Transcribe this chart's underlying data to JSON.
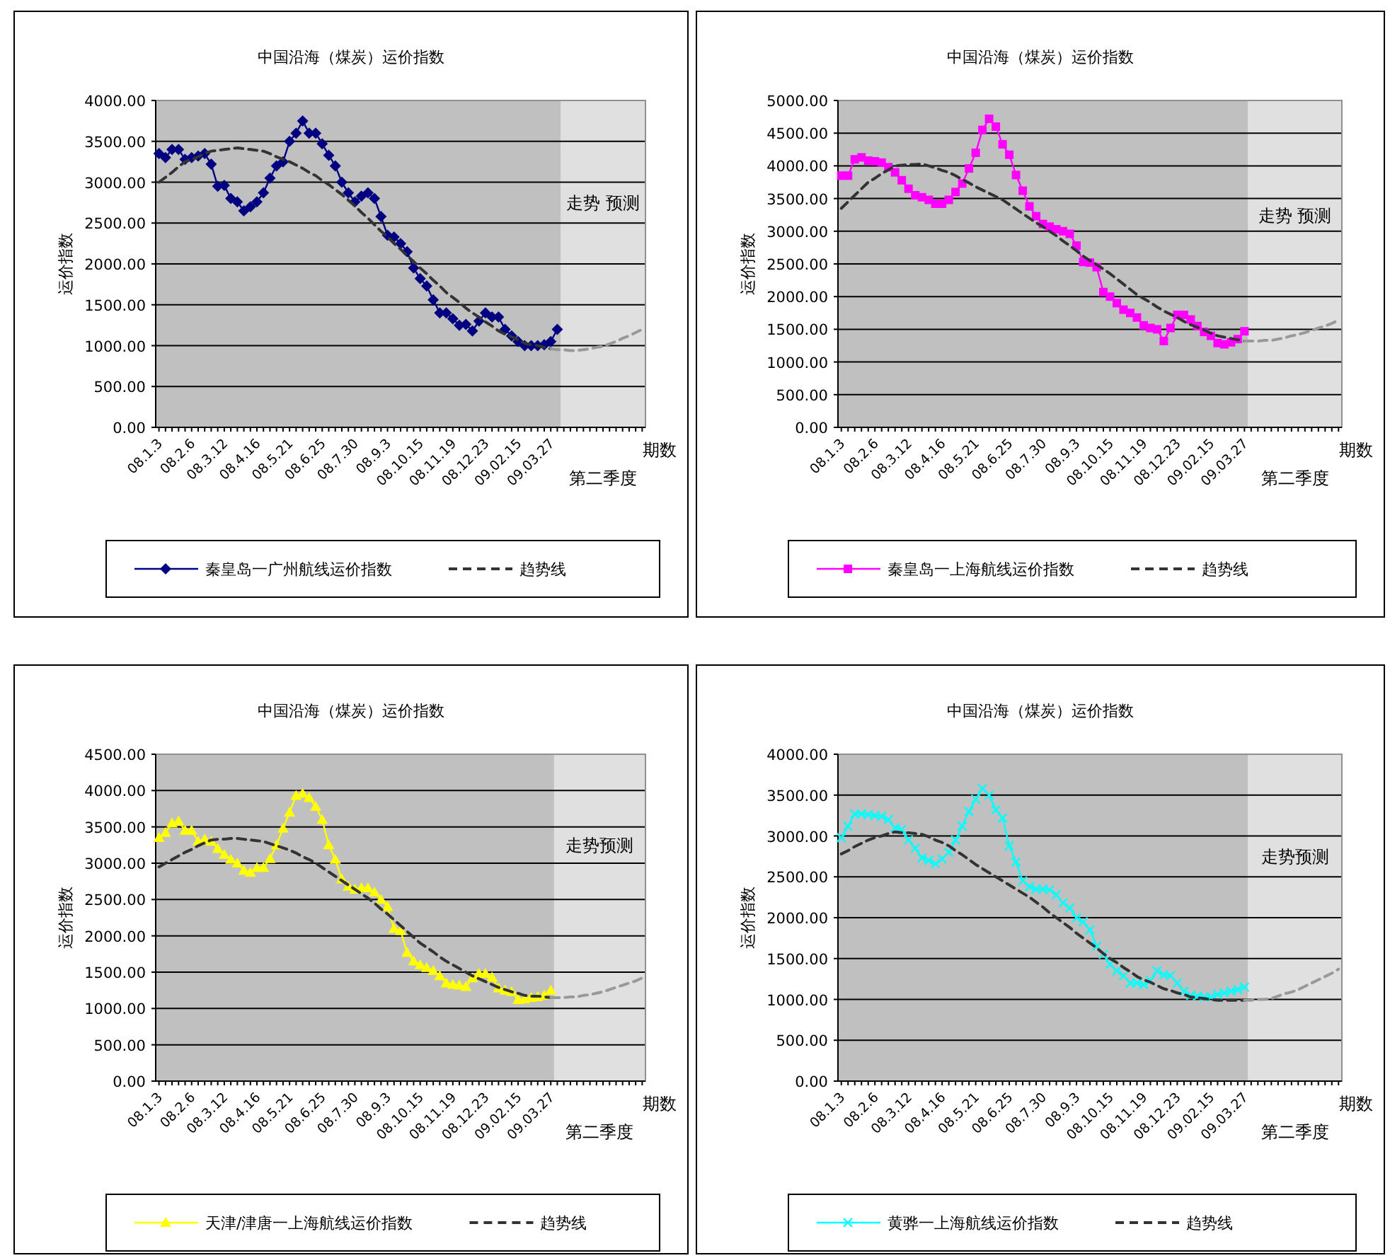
{
  "chart_data": [
    {
      "type": "line",
      "title": "中国沿海（煤炭）运价指数",
      "ylabel": "运价指数",
      "xlabel": "期数",
      "annotations": [
        "走势 预测",
        "第二季度"
      ],
      "ylim": [
        0,
        4000
      ],
      "yticks": [
        {
          "value": 0,
          "label": "0.00"
        },
        {
          "value": 500,
          "label": "500.00"
        },
        {
          "value": 1000,
          "label": "1000.00"
        },
        {
          "value": 1500,
          "label": "1500.00"
        },
        {
          "value": 2000,
          "label": "2000.00"
        },
        {
          "value": 2500,
          "label": "2500.00"
        },
        {
          "value": 3000,
          "label": "3000.00"
        },
        {
          "value": 3500,
          "label": "3500.00"
        },
        {
          "value": 4000,
          "label": "4000.00"
        }
      ],
      "categories": [
        "08.1.3",
        null,
        null,
        null,
        null,
        "08.2.6",
        null,
        null,
        null,
        null,
        "08.3.12",
        null,
        null,
        null,
        null,
        "08.4.16",
        null,
        null,
        null,
        null,
        "08.5.21",
        null,
        null,
        null,
        null,
        "08.6.25",
        null,
        null,
        null,
        null,
        "08.7.30",
        null,
        null,
        null,
        null,
        "08.9.3",
        null,
        null,
        null,
        null,
        "08.10.15",
        null,
        null,
        null,
        null,
        "08.11.19",
        null,
        null,
        null,
        null,
        "08.12.23",
        null,
        null,
        null,
        null,
        "09.02.15",
        null,
        null,
        null,
        null,
        "09.03.27",
        null,
        null,
        null,
        null,
        null,
        null,
        null,
        null,
        null,
        null,
        null,
        null,
        null,
        null
      ],
      "grid": "y",
      "legend": "bottom",
      "series": [
        {
          "name": "秦皇岛一广州航线运价指数",
          "color": "#000080",
          "marker": "diamond",
          "line_style": "solid",
          "values": [
            3350,
            3300,
            3400,
            3400,
            3280,
            3300,
            3320,
            3350,
            3220,
            2950,
            2960,
            2800,
            2760,
            2650,
            2700,
            2760,
            2870,
            3050,
            3200,
            3250,
            3500,
            3600,
            3750,
            3600,
            3600,
            3470,
            3330,
            3200,
            3000,
            2870,
            2760,
            2830,
            2870,
            2800,
            2580,
            2350,
            2330,
            2250,
            2150,
            1950,
            1820,
            1730,
            1560,
            1400,
            1400,
            1330,
            1250,
            1260,
            1180,
            1300,
            1400,
            1350,
            1350,
            1200,
            1120,
            1050,
            1000,
            1000,
            1000,
            1010,
            1050,
            1200,
            null,
            null,
            null,
            null,
            null,
            null,
            null,
            null,
            null,
            null,
            null,
            null,
            null
          ]
        },
        {
          "name": "趋势线",
          "color": "#333333",
          "marker": "none",
          "line_style": "dashed",
          "values": [
            3000,
            3060,
            3120,
            3190,
            3250,
            3280,
            3310,
            3350,
            3380,
            3390,
            3400,
            3410,
            3420,
            3410,
            3400,
            3390,
            3380,
            3350,
            3310,
            3280,
            3250,
            3210,
            3170,
            3120,
            3080,
            3020,
            2970,
            2910,
            2850,
            2780,
            2710,
            2630,
            2560,
            2480,
            2400,
            2330,
            2250,
            2180,
            2100,
            2030,
            1950,
            1880,
            1800,
            1730,
            1650,
            1590,
            1530,
            1460,
            1400,
            1350,
            1290,
            1240,
            1180,
            1140,
            1110,
            1070,
            1030,
            1010,
            1000,
            980,
            960,
            null,
            null,
            null,
            null,
            null,
            null,
            null,
            null,
            null,
            null,
            null,
            null,
            null,
            null
          ]
        },
        {
          "color": "#999999",
          "marker": "none",
          "line_style": "dashed",
          "values": [
            null,
            null,
            null,
            null,
            null,
            null,
            null,
            null,
            null,
            null,
            null,
            null,
            null,
            null,
            null,
            null,
            null,
            null,
            null,
            null,
            null,
            null,
            null,
            null,
            null,
            null,
            null,
            null,
            null,
            null,
            null,
            null,
            null,
            null,
            null,
            null,
            null,
            null,
            null,
            null,
            null,
            null,
            null,
            null,
            null,
            null,
            null,
            null,
            null,
            null,
            null,
            null,
            null,
            null,
            null,
            null,
            null,
            null,
            null,
            null,
            960,
            950,
            950,
            940,
            940,
            950,
            960,
            980,
            990,
            1020,
            1050,
            1090,
            1120,
            1160,
            1200
          ]
        }
      ]
    },
    {
      "type": "line",
      "title": "中国沿海（煤炭）运价指数",
      "ylabel": "运价指数",
      "xlabel": "期数",
      "annotations": [
        "走势 预测",
        "第二季度"
      ],
      "ylim": [
        0,
        5000
      ],
      "yticks": [
        {
          "value": 0,
          "label": "0.00"
        },
        {
          "value": 500,
          "label": "500.00"
        },
        {
          "value": 1000,
          "label": "1000.00"
        },
        {
          "value": 1500,
          "label": "1500.00"
        },
        {
          "value": 2000,
          "label": "2000.00"
        },
        {
          "value": 2500,
          "label": "2500.00"
        },
        {
          "value": 3000,
          "label": "3000.00"
        },
        {
          "value": 3500,
          "label": "3500.00"
        },
        {
          "value": 4000,
          "label": "4000.00"
        },
        {
          "value": 4500,
          "label": "4500.00"
        },
        {
          "value": 5000,
          "label": "5000.00"
        }
      ],
      "categories": [
        "08.1.3",
        null,
        null,
        null,
        null,
        "08.2.6",
        null,
        null,
        null,
        null,
        "08.3.12",
        null,
        null,
        null,
        null,
        "08.4.16",
        null,
        null,
        null,
        null,
        "08.5.21",
        null,
        null,
        null,
        null,
        "08.6.25",
        null,
        null,
        null,
        null,
        "08.7.30",
        null,
        null,
        null,
        null,
        "08.9.3",
        null,
        null,
        null,
        null,
        "08.10.15",
        null,
        null,
        null,
        null,
        "08.11.19",
        null,
        null,
        null,
        null,
        "08.12.23",
        null,
        null,
        null,
        null,
        "09.02.15",
        null,
        null,
        null,
        null,
        "09.03.27",
        null,
        null,
        null,
        null,
        null,
        null,
        null,
        null,
        null,
        null,
        null,
        null,
        null,
        null
      ],
      "grid": "y",
      "legend": "bottom",
      "series": [
        {
          "name": "秦皇岛一上海航线运价指数",
          "color": "#ff00ff",
          "marker": "square",
          "line_style": "solid",
          "values": [
            3850,
            3850,
            4100,
            4130,
            4080,
            4070,
            4050,
            3980,
            3900,
            3780,
            3650,
            3550,
            3520,
            3480,
            3420,
            3420,
            3480,
            3600,
            3730,
            3960,
            4200,
            4550,
            4720,
            4600,
            4330,
            4170,
            3860,
            3620,
            3380,
            3230,
            3110,
            3070,
            3030,
            3000,
            2960,
            2780,
            2530,
            2520,
            2450,
            2070,
            2000,
            1900,
            1800,
            1750,
            1680,
            1560,
            1520,
            1500,
            1320,
            1520,
            1720,
            1720,
            1650,
            1550,
            1460,
            1400,
            1290,
            1270,
            1300,
            1350,
            1470,
            null,
            null,
            null,
            null,
            null,
            null,
            null,
            null,
            null,
            null,
            null,
            null,
            null,
            null
          ]
        },
        {
          "name": "趋势线",
          "color": "#333333",
          "marker": "none",
          "line_style": "dashed",
          "values": [
            3350,
            3450,
            3550,
            3650,
            3750,
            3810,
            3880,
            3940,
            4000,
            4010,
            4020,
            4020,
            4030,
            4000,
            3970,
            3930,
            3900,
            3850,
            3790,
            3740,
            3680,
            3630,
            3580,
            3530,
            3480,
            3410,
            3340,
            3270,
            3200,
            3130,
            3070,
            3000,
            2930,
            2850,
            2780,
            2700,
            2620,
            2550,
            2490,
            2420,
            2350,
            2270,
            2190,
            2110,
            2030,
            1970,
            1910,
            1840,
            1780,
            1730,
            1680,
            1620,
            1570,
            1530,
            1490,
            1440,
            1400,
            1380,
            1360,
            1340,
            1320,
            null,
            null,
            null,
            null,
            null,
            null,
            null,
            null,
            null,
            null,
            null,
            null,
            null,
            null
          ]
        },
        {
          "color": "#999999",
          "marker": "none",
          "line_style": "dashed",
          "values": [
            null,
            null,
            null,
            null,
            null,
            null,
            null,
            null,
            null,
            null,
            null,
            null,
            null,
            null,
            null,
            null,
            null,
            null,
            null,
            null,
            null,
            null,
            null,
            null,
            null,
            null,
            null,
            null,
            null,
            null,
            null,
            null,
            null,
            null,
            null,
            null,
            null,
            null,
            null,
            null,
            null,
            null,
            null,
            null,
            null,
            null,
            null,
            null,
            null,
            null,
            null,
            null,
            null,
            null,
            null,
            null,
            null,
            null,
            null,
            null,
            1320,
            1320,
            1320,
            1330,
            1330,
            1350,
            1370,
            1400,
            1420,
            1450,
            1480,
            1520,
            1550,
            1590,
            1640
          ]
        }
      ]
    },
    {
      "type": "line",
      "title": "中国沿海（煤炭）运价指数",
      "ylabel": "运价指数",
      "xlabel": "期数",
      "annotations": [
        "走势预测",
        "第二季度"
      ],
      "ylim": [
        0,
        4500
      ],
      "yticks": [
        {
          "value": 0,
          "label": "0.00"
        },
        {
          "value": 500,
          "label": "500.00"
        },
        {
          "value": 1000,
          "label": "1000.00"
        },
        {
          "value": 1500,
          "label": "1500.00"
        },
        {
          "value": 2000,
          "label": "2000.00"
        },
        {
          "value": 2500,
          "label": "2500.00"
        },
        {
          "value": 3000,
          "label": "3000.00"
        },
        {
          "value": 3500,
          "label": "3500.00"
        },
        {
          "value": 4000,
          "label": "4000.00"
        },
        {
          "value": 4500,
          "label": "4500.00"
        }
      ],
      "categories": [
        "08.1.3",
        null,
        null,
        null,
        null,
        "08.2.6",
        null,
        null,
        null,
        null,
        "08.3.12",
        null,
        null,
        null,
        null,
        "08.4.16",
        null,
        null,
        null,
        null,
        "08.5.21",
        null,
        null,
        null,
        null,
        "08.6.25",
        null,
        null,
        null,
        null,
        "08.7.30",
        null,
        null,
        null,
        null,
        "08.9.3",
        null,
        null,
        null,
        null,
        "08.10.15",
        null,
        null,
        null,
        null,
        "08.11.19",
        null,
        null,
        null,
        null,
        "08.12.23",
        null,
        null,
        null,
        null,
        "09.02.15",
        null,
        null,
        null,
        null,
        "09.03.27",
        null,
        null,
        null,
        null,
        null,
        null,
        null,
        null,
        null,
        null,
        null,
        null,
        null,
        null
      ],
      "grid": "y",
      "legend": "bottom",
      "series": [
        {
          "name": "天津/津唐一上海航线运价指数",
          "color": "#ffff00",
          "marker": "triangle",
          "line_style": "solid",
          "values": [
            3350,
            3420,
            3550,
            3580,
            3450,
            3450,
            3300,
            3330,
            3300,
            3200,
            3120,
            3050,
            3000,
            2900,
            2870,
            2940,
            2940,
            3060,
            3250,
            3480,
            3700,
            3930,
            3960,
            3900,
            3780,
            3600,
            3250,
            3050,
            2780,
            2680,
            2640,
            2660,
            2660,
            2600,
            2500,
            2400,
            2100,
            2070,
            1770,
            1650,
            1600,
            1560,
            1520,
            1450,
            1350,
            1330,
            1320,
            1300,
            1420,
            1480,
            1480,
            1430,
            1280,
            1250,
            1230,
            1120,
            1130,
            1150,
            1160,
            1180,
            1250,
            null,
            null,
            null,
            null,
            null,
            null,
            null,
            null,
            null,
            null,
            null,
            null,
            null,
            null
          ]
        },
        {
          "name": "趋势线",
          "color": "#333333",
          "marker": "none",
          "line_style": "dashed",
          "values": [
            2950,
            3000,
            3050,
            3100,
            3150,
            3190,
            3240,
            3280,
            3320,
            3330,
            3330,
            3340,
            3340,
            3330,
            3320,
            3310,
            3300,
            3270,
            3240,
            3210,
            3180,
            3140,
            3090,
            3050,
            3000,
            2940,
            2880,
            2820,
            2760,
            2700,
            2640,
            2580,
            2520,
            2450,
            2370,
            2300,
            2220,
            2140,
            2060,
            1980,
            1900,
            1840,
            1780,
            1710,
            1650,
            1600,
            1550,
            1500,
            1450,
            1410,
            1370,
            1330,
            1290,
            1260,
            1230,
            1210,
            1180,
            1170,
            1170,
            1160,
            1150,
            null,
            null,
            null,
            null,
            null,
            null,
            null,
            null,
            null,
            null,
            null,
            null,
            null,
            null
          ]
        },
        {
          "color": "#999999",
          "marker": "none",
          "line_style": "dashed",
          "values": [
            null,
            null,
            null,
            null,
            null,
            null,
            null,
            null,
            null,
            null,
            null,
            null,
            null,
            null,
            null,
            null,
            null,
            null,
            null,
            null,
            null,
            null,
            null,
            null,
            null,
            null,
            null,
            null,
            null,
            null,
            null,
            null,
            null,
            null,
            null,
            null,
            null,
            null,
            null,
            null,
            null,
            null,
            null,
            null,
            null,
            null,
            null,
            null,
            null,
            null,
            null,
            null,
            null,
            null,
            null,
            null,
            null,
            null,
            null,
            null,
            1150,
            1150,
            1150,
            1160,
            1160,
            1180,
            1190,
            1210,
            1230,
            1260,
            1290,
            1320,
            1350,
            1380,
            1420
          ]
        }
      ]
    },
    {
      "type": "line",
      "title": "中国沿海（煤炭）运价指数",
      "ylabel": "运价指数",
      "xlabel": "期数",
      "annotations": [
        "走势预测",
        "第二季度"
      ],
      "ylim": [
        0,
        4000
      ],
      "yticks": [
        {
          "value": 0,
          "label": "0.00"
        },
        {
          "value": 500,
          "label": "500.00"
        },
        {
          "value": 1000,
          "label": "1000.00"
        },
        {
          "value": 1500,
          "label": "1500.00"
        },
        {
          "value": 2000,
          "label": "2000.00"
        },
        {
          "value": 2500,
          "label": "2500.00"
        },
        {
          "value": 3000,
          "label": "3000.00"
        },
        {
          "value": 3500,
          "label": "3500.00"
        },
        {
          "value": 4000,
          "label": "4000.00"
        }
      ],
      "categories": [
        "08.1.3",
        null,
        null,
        null,
        null,
        "08.2.6",
        null,
        null,
        null,
        null,
        "08.3.12",
        null,
        null,
        null,
        null,
        "08.4.16",
        null,
        null,
        null,
        null,
        "08.5.21",
        null,
        null,
        null,
        null,
        "08.6.25",
        null,
        null,
        null,
        null,
        "08.7.30",
        null,
        null,
        null,
        null,
        "08.9.3",
        null,
        null,
        null,
        null,
        "08.10.15",
        null,
        null,
        null,
        null,
        "08.11.19",
        null,
        null,
        null,
        null,
        "08.12.23",
        null,
        null,
        null,
        null,
        "09.02.15",
        null,
        null,
        null,
        null,
        "09.03.27",
        null,
        null,
        null,
        null,
        null,
        null,
        null,
        null,
        null,
        null,
        null,
        null,
        null,
        null
      ],
      "grid": "y",
      "legend": "bottom",
      "series": [
        {
          "name": "黄骅一上海航线运价指数",
          "color": "#00ffff",
          "marker": "cross",
          "line_style": "solid",
          "values": [
            2980,
            3120,
            3270,
            3270,
            3260,
            3250,
            3240,
            3200,
            3100,
            3080,
            2950,
            2850,
            2730,
            2700,
            2660,
            2720,
            2800,
            2950,
            3120,
            3300,
            3450,
            3580,
            3500,
            3320,
            3220,
            2880,
            2680,
            2450,
            2380,
            2350,
            2350,
            2340,
            2280,
            2180,
            2120,
            2000,
            1950,
            1850,
            1650,
            1550,
            1430,
            1350,
            1290,
            1200,
            1200,
            1180,
            1230,
            1350,
            1300,
            1290,
            1200,
            1100,
            1050,
            1040,
            1030,
            1030,
            1060,
            1080,
            1100,
            1120,
            1150,
            null,
            null,
            null,
            null,
            null,
            null,
            null,
            null,
            null,
            null,
            null,
            null,
            null,
            null
          ]
        },
        {
          "name": "趋势线",
          "color": "#333333",
          "marker": "none",
          "line_style": "dashed",
          "values": [
            2780,
            2820,
            2870,
            2910,
            2950,
            2980,
            3000,
            3030,
            3050,
            3040,
            3040,
            3030,
            3020,
            2990,
            2950,
            2920,
            2880,
            2820,
            2770,
            2710,
            2650,
            2600,
            2550,
            2500,
            2450,
            2400,
            2350,
            2300,
            2250,
            2190,
            2130,
            2060,
            2000,
            1940,
            1880,
            1810,
            1750,
            1690,
            1630,
            1560,
            1500,
            1450,
            1390,
            1340,
            1280,
            1240,
            1210,
            1170,
            1130,
            1110,
            1080,
            1060,
            1030,
            1020,
            1010,
            1000,
            990,
            990,
            990,
            990,
            990,
            null,
            null,
            null,
            null,
            null,
            null,
            null,
            null,
            null,
            null,
            null,
            null,
            null,
            null
          ]
        },
        {
          "color": "#999999",
          "marker": "none",
          "line_style": "dashed",
          "values": [
            null,
            null,
            null,
            null,
            null,
            null,
            null,
            null,
            null,
            null,
            null,
            null,
            null,
            null,
            null,
            null,
            null,
            null,
            null,
            null,
            null,
            null,
            null,
            null,
            null,
            null,
            null,
            null,
            null,
            null,
            null,
            null,
            null,
            null,
            null,
            null,
            null,
            null,
            null,
            null,
            null,
            null,
            null,
            null,
            null,
            null,
            null,
            null,
            null,
            null,
            null,
            null,
            null,
            null,
            null,
            null,
            null,
            null,
            null,
            null,
            990,
            990,
            1000,
            1000,
            1010,
            1040,
            1070,
            1090,
            1120,
            1160,
            1200,
            1240,
            1280,
            1320,
            1370
          ]
        }
      ]
    }
  ]
}
